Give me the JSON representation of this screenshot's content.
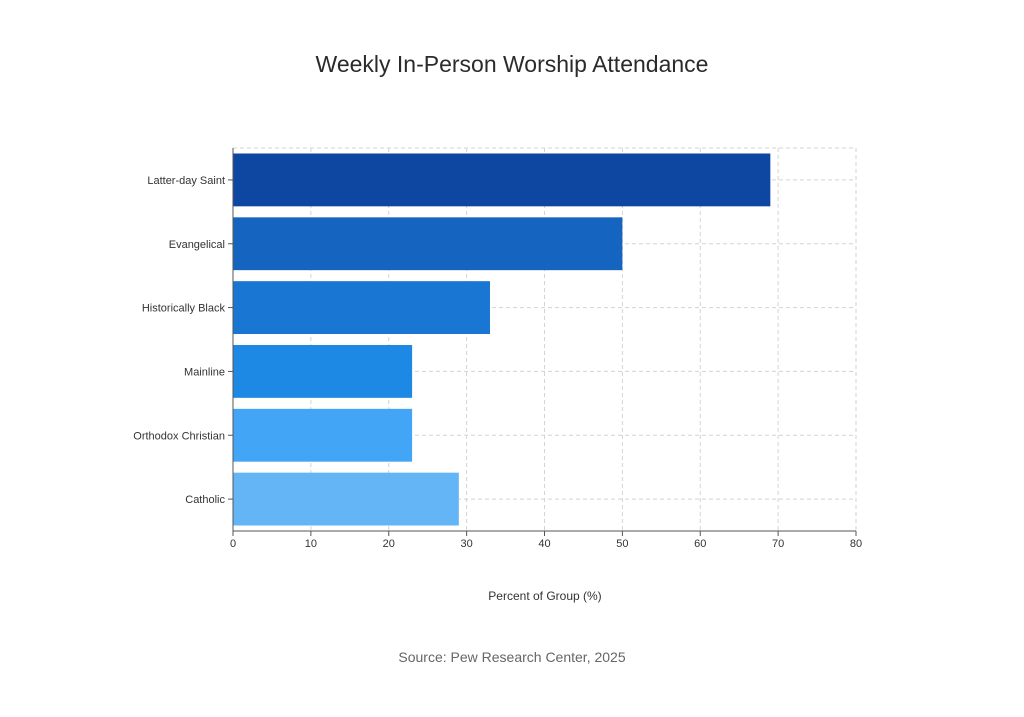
{
  "chart_data": {
    "type": "bar",
    "orientation": "horizontal",
    "title": "Weekly In-Person Worship Attendance",
    "xlabel": "Percent of Group (%)",
    "ylabel": "",
    "xlim": [
      0,
      80
    ],
    "xticks": [
      0,
      10,
      20,
      30,
      40,
      50,
      60,
      70,
      80
    ],
    "grid": true,
    "categories": [
      "Latter-day Saint",
      "Evangelical",
      "Historically Black",
      "Mainline",
      "Orthodox Christian",
      "Catholic"
    ],
    "values": [
      69,
      50,
      33,
      23,
      23,
      29
    ],
    "colors": [
      "#0d47a1",
      "#1565c0",
      "#1976d2",
      "#1e88e5",
      "#42a5f5",
      "#64b5f6"
    ],
    "source": "Source: Pew Research Center, 2025"
  }
}
